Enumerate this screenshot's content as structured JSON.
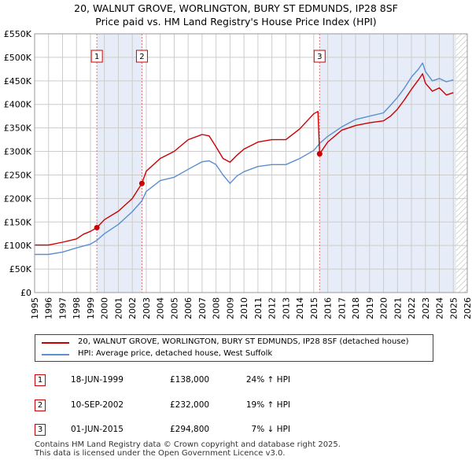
{
  "title_line1": "20, WALNUT GROVE, WORLINGTON, BURY ST EDMUNDS, IP28 8SF",
  "title_line2": "Price paid vs. HM Land Registry's House Price Index (HPI)",
  "colors": {
    "price": "#cc0000",
    "hpi": "#5b8fd0",
    "shade": "#e6edf8",
    "grid": "#cccccc",
    "vline": "#e07070"
  },
  "legend": {
    "price": "20, WALNUT GROVE, WORLINGTON, BURY ST EDMUNDS, IP28 8SF (detached house)",
    "hpi": "HPI: Average price, detached house, West Suffolk"
  },
  "transactions": [
    {
      "num": "1",
      "date": "18-JUN-1999",
      "price": "£138,000",
      "hpi": "24% ↑ HPI"
    },
    {
      "num": "2",
      "date": "10-SEP-2002",
      "price": "£232,000",
      "hpi": "19% ↑ HPI"
    },
    {
      "num": "3",
      "date": "01-JUN-2015",
      "price": "£294,800",
      "hpi": "7% ↓ HPI"
    }
  ],
  "footer": {
    "line1": "Contains HM Land Registry data © Crown copyright and database right 2025.",
    "line2": "This data is licensed under the Open Government Licence v3.0."
  },
  "chart_data": {
    "type": "line",
    "title": "Price paid vs. HM Land Registry's House Price Index (HPI)",
    "xlim": [
      1995,
      2026
    ],
    "ylim": [
      0,
      550000
    ],
    "x_ticks": [
      1995,
      1996,
      1997,
      1998,
      1999,
      2000,
      2001,
      2002,
      2003,
      2004,
      2005,
      2006,
      2007,
      2008,
      2009,
      2010,
      2011,
      2012,
      2013,
      2014,
      2015,
      2016,
      2017,
      2018,
      2019,
      2020,
      2021,
      2022,
      2023,
      2024,
      2025,
      2026
    ],
    "y_ticks": [
      0,
      50000,
      100000,
      150000,
      200000,
      250000,
      300000,
      350000,
      400000,
      450000,
      500000,
      550000
    ],
    "y_tick_labels": [
      "£0",
      "£50K",
      "£100K",
      "£150K",
      "£200K",
      "£250K",
      "£300K",
      "£350K",
      "£400K",
      "£450K",
      "£500K",
      "£550K"
    ],
    "shaded_periods": [
      [
        1999.46,
        2002.69
      ],
      [
        2015.42,
        2025.2
      ]
    ],
    "hatched_after": 2025.2,
    "sales": [
      {
        "label": "1",
        "x": 1999.46,
        "y": 138000
      },
      {
        "label": "2",
        "x": 2002.69,
        "y": 232000
      },
      {
        "label": "3",
        "x": 2015.42,
        "y": 294800
      }
    ],
    "series": [
      {
        "name": "20, WALNUT GROVE, WORLINGTON, BURY ST EDMUNDS, IP28 8SF (detached house)",
        "x": [
          1995,
          1996,
          1997,
          1998,
          1998.5,
          1999,
          1999.46,
          2000,
          2001,
          2002,
          2002.69,
          2003,
          2004,
          2005,
          2006,
          2007,
          2007.5,
          2008,
          2008.5,
          2009,
          2009.5,
          2010,
          2011,
          2012,
          2013,
          2014,
          2015,
          2015.3,
          2015.42,
          2016,
          2017,
          2018,
          2019,
          2020,
          2020.5,
          2021,
          2021.5,
          2022,
          2022.5,
          2022.8,
          2023,
          2023.5,
          2024,
          2024.5,
          2025
        ],
        "values": [
          101000,
          101000,
          107000,
          114000,
          124000,
          130000,
          138000,
          155000,
          173000,
          200000,
          232000,
          258000,
          285000,
          300000,
          325000,
          336000,
          333000,
          310000,
          285000,
          277000,
          292000,
          305000,
          320000,
          325000,
          325000,
          348000,
          380000,
          385000,
          294800,
          320000,
          345000,
          355000,
          361000,
          365000,
          375000,
          390000,
          410000,
          432000,
          452000,
          465000,
          445000,
          428000,
          435000,
          420000,
          425000
        ]
      },
      {
        "name": "HPI: Average price, detached house, West Suffolk",
        "x": [
          1995,
          1996,
          1997,
          1998,
          1999,
          1999.46,
          2000,
          2001,
          2002,
          2002.69,
          2003,
          2004,
          2005,
          2006,
          2007,
          2007.5,
          2008,
          2008.5,
          2009,
          2009.5,
          2010,
          2011,
          2012,
          2013,
          2014,
          2015,
          2015.42,
          2016,
          2017,
          2018,
          2019,
          2020,
          2020.5,
          2021,
          2021.5,
          2022,
          2022.5,
          2022.8,
          2023,
          2023.5,
          2024,
          2024.5,
          2025
        ],
        "values": [
          81000,
          81000,
          86000,
          95000,
          103000,
          111000,
          125000,
          145000,
          172000,
          195000,
          215000,
          238000,
          245000,
          262000,
          278000,
          280000,
          272000,
          250000,
          232000,
          248000,
          257000,
          268000,
          272000,
          272000,
          285000,
          302000,
          317000,
          332000,
          352000,
          368000,
          375000,
          382000,
          398000,
          415000,
          435000,
          458000,
          475000,
          488000,
          470000,
          450000,
          455000,
          448000,
          452000
        ]
      }
    ],
    "legend_position": "below"
  }
}
